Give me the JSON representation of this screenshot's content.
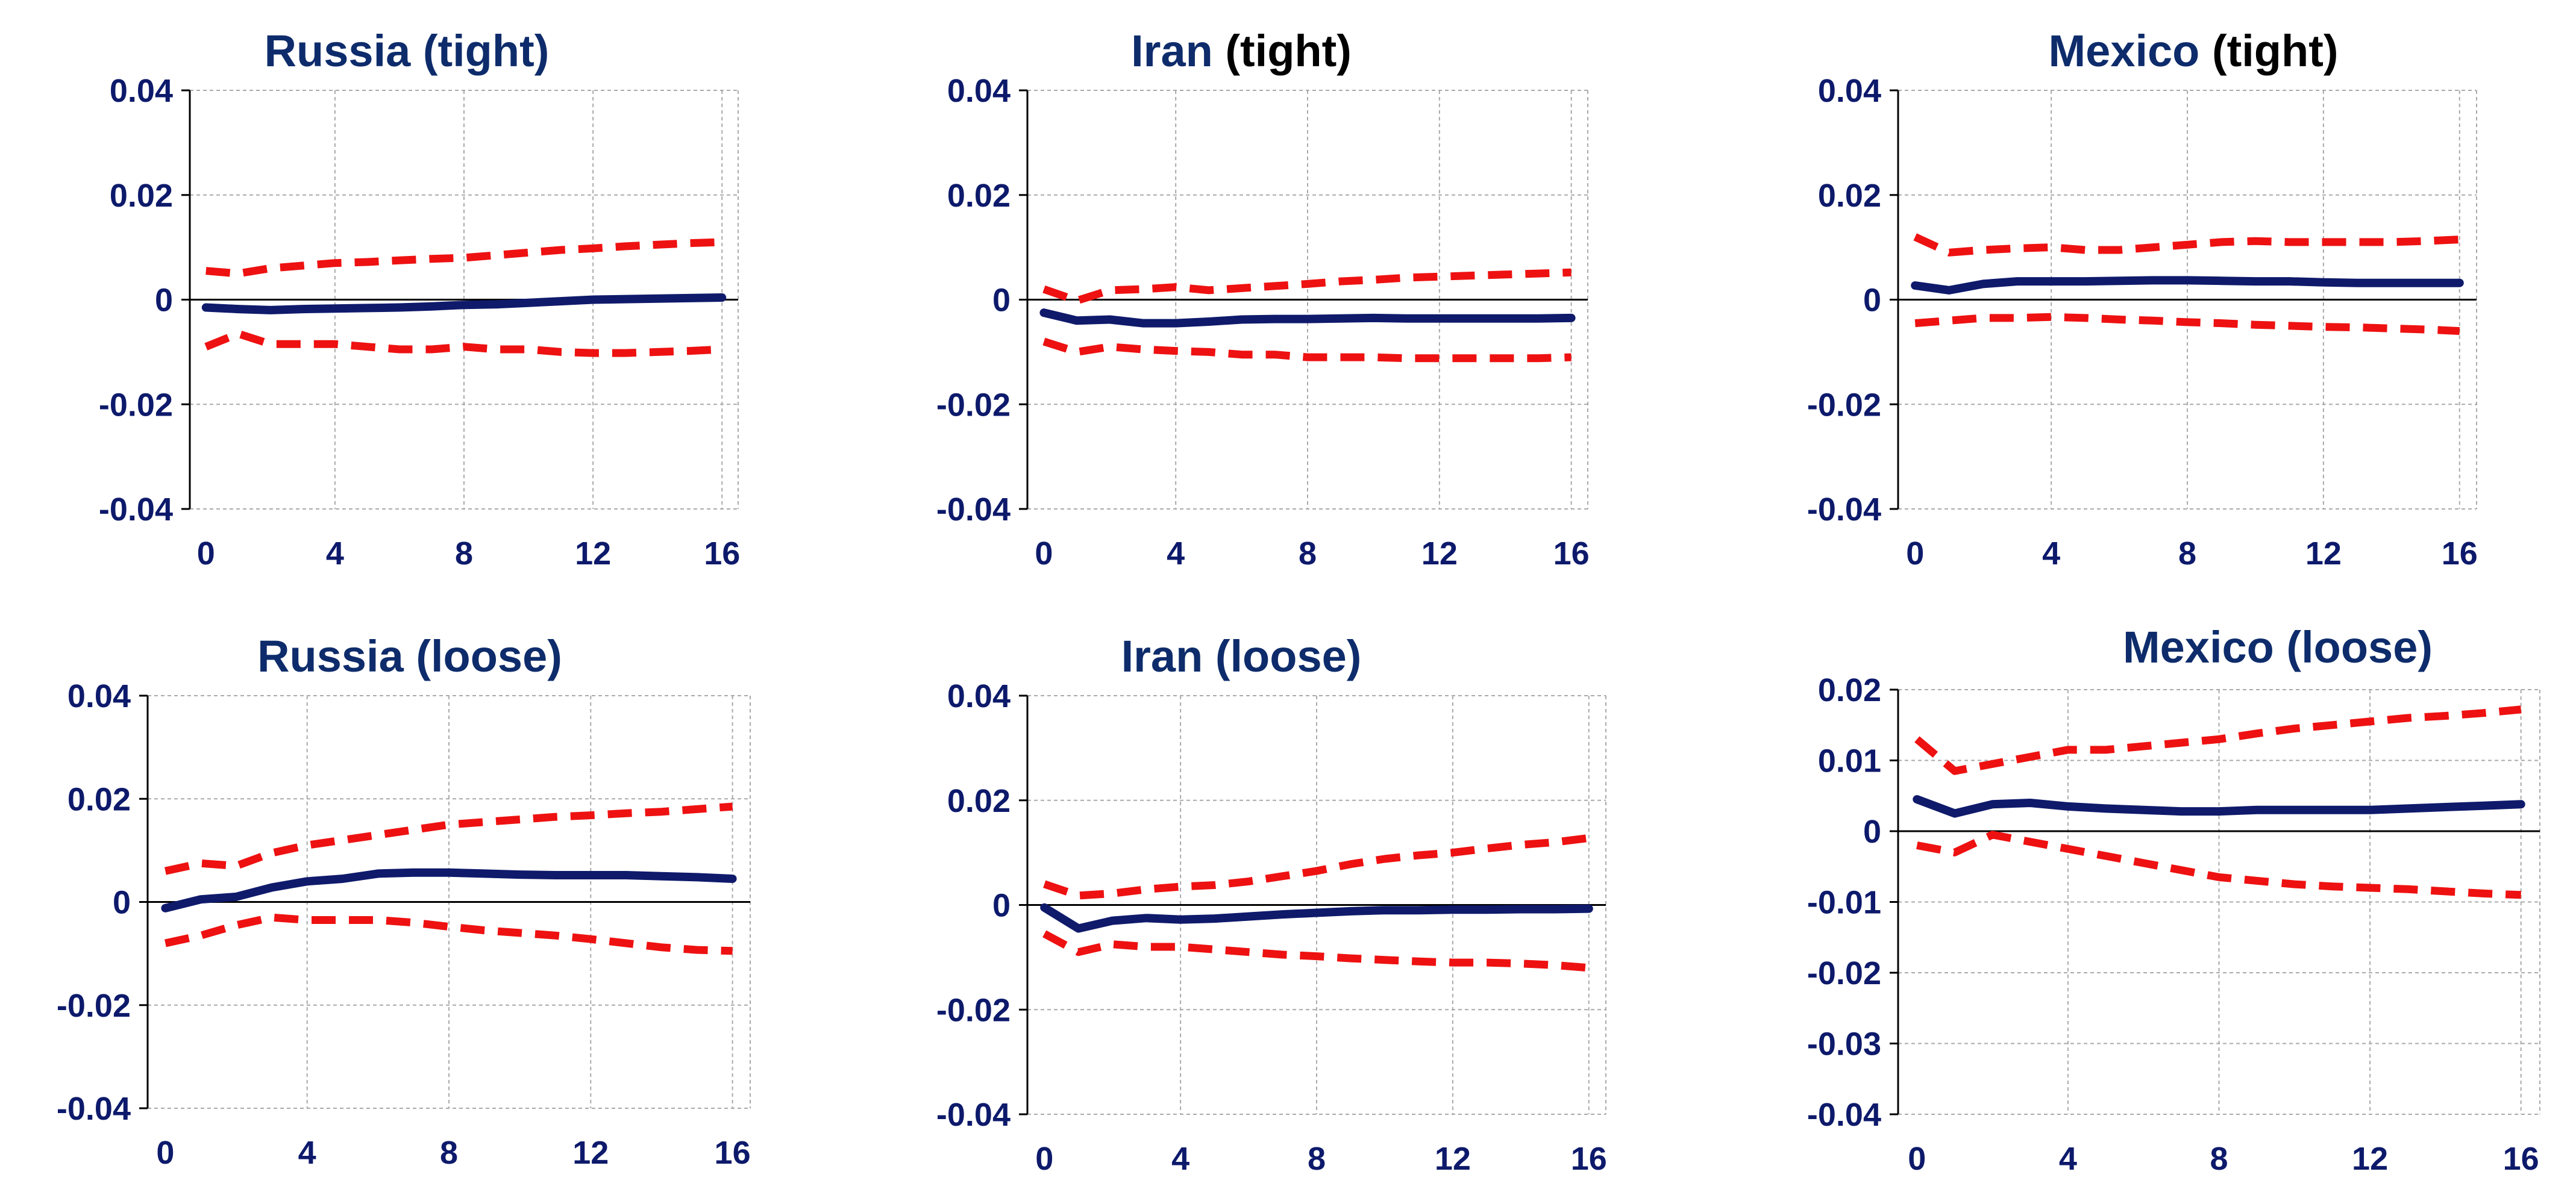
{
  "colors": {
    "axis_text": "#0D1A6B",
    "title": "#0E2C6B",
    "title_suffix_black": "#000000",
    "median_line": "#0F1A6B",
    "band_line": "#EE1111",
    "grid": "#AAAAAA",
    "axis": "#000000"
  },
  "chart_data": [
    {
      "id": "russia-tight",
      "type": "line",
      "title": "Russia (tight)",
      "title_parts": [
        {
          "text": "Russia (tight)",
          "color": "title"
        }
      ],
      "x": [
        0,
        1,
        2,
        3,
        4,
        5,
        6,
        7,
        8,
        9,
        10,
        11,
        12,
        13,
        14,
        15,
        16
      ],
      "xlim": [
        -0.5,
        16.5
      ],
      "xticks": [
        0,
        4,
        8,
        12,
        16
      ],
      "xtick_labels": [
        "0",
        "4",
        "8",
        "12",
        "16"
      ],
      "ylim": [
        -0.04,
        0.04
      ],
      "yticks": [
        -0.04,
        -0.02,
        0,
        0.02,
        0.04
      ],
      "ytick_labels": [
        "-0.04",
        "-0.02",
        "0",
        "0.02",
        "0.04"
      ],
      "grid": true,
      "series": [
        {
          "name": "upper",
          "style": "dashed",
          "values": [
            0.0055,
            0.005,
            0.006,
            0.0065,
            0.007,
            0.0072,
            0.0075,
            0.0078,
            0.008,
            0.0085,
            0.009,
            0.0095,
            0.0098,
            0.0102,
            0.0105,
            0.0108,
            0.011
          ]
        },
        {
          "name": "median",
          "style": "solid",
          "values": [
            -0.0015,
            -0.0018,
            -0.002,
            -0.0018,
            -0.0017,
            -0.0016,
            -0.0015,
            -0.0013,
            -0.001,
            -0.0009,
            -0.0006,
            -0.0003,
            0.0,
            0.0001,
            0.0002,
            0.0003,
            0.0004
          ]
        },
        {
          "name": "lower",
          "style": "dashed",
          "values": [
            -0.009,
            -0.0065,
            -0.0085,
            -0.0085,
            -0.0085,
            -0.009,
            -0.0095,
            -0.0095,
            -0.009,
            -0.0095,
            -0.0095,
            -0.01,
            -0.0102,
            -0.0102,
            -0.01,
            -0.0098,
            -0.0095
          ]
        }
      ]
    },
    {
      "id": "iran-tight",
      "type": "line",
      "title": "Iran (tight)",
      "title_parts": [
        {
          "text": "Iran",
          "color": "title"
        },
        {
          "text": " (tight)",
          "color": "title_suffix_black"
        }
      ],
      "x": [
        0,
        1,
        2,
        3,
        4,
        5,
        6,
        7,
        8,
        9,
        10,
        11,
        12,
        13,
        14,
        15,
        16
      ],
      "xlim": [
        -0.5,
        16.5
      ],
      "xticks": [
        0,
        4,
        8,
        12,
        16
      ],
      "xtick_labels": [
        "0",
        "4",
        "8",
        "12",
        "16"
      ],
      "ylim": [
        -0.04,
        0.04
      ],
      "yticks": [
        -0.04,
        -0.02,
        0,
        0.02,
        0.04
      ],
      "ytick_labels": [
        "-0.04",
        "-0.02",
        "0",
        "0.02",
        "0.04"
      ],
      "grid": true,
      "series": [
        {
          "name": "upper",
          "style": "dashed",
          "values": [
            0.002,
            -0.0002,
            0.0018,
            0.002,
            0.0024,
            0.0018,
            0.0022,
            0.0026,
            0.003,
            0.0035,
            0.0038,
            0.0042,
            0.0044,
            0.0046,
            0.0048,
            0.005,
            0.0052
          ]
        },
        {
          "name": "median",
          "style": "solid",
          "values": [
            -0.0025,
            -0.004,
            -0.0038,
            -0.0045,
            -0.0045,
            -0.0042,
            -0.0038,
            -0.0037,
            -0.0037,
            -0.0036,
            -0.0035,
            -0.0036,
            -0.0036,
            -0.0036,
            -0.0036,
            -0.0036,
            -0.0035
          ]
        },
        {
          "name": "lower",
          "style": "dashed",
          "values": [
            -0.008,
            -0.01,
            -0.009,
            -0.0095,
            -0.0098,
            -0.01,
            -0.0105,
            -0.0105,
            -0.011,
            -0.011,
            -0.011,
            -0.0112,
            -0.0112,
            -0.0112,
            -0.0112,
            -0.0112,
            -0.011
          ]
        }
      ]
    },
    {
      "id": "mexico-tight",
      "type": "line",
      "title": "Mexico (tight)",
      "title_parts": [
        {
          "text": "Mexico",
          "color": "title"
        },
        {
          "text": " (tight)",
          "color": "title_suffix_black"
        }
      ],
      "x": [
        0,
        1,
        2,
        3,
        4,
        5,
        6,
        7,
        8,
        9,
        10,
        11,
        12,
        13,
        14,
        15,
        16
      ],
      "xlim": [
        -0.5,
        16.5
      ],
      "xticks": [
        0,
        4,
        8,
        12,
        16
      ],
      "xtick_labels": [
        "0",
        "4",
        "8",
        "12",
        "16"
      ],
      "ylim": [
        -0.04,
        0.04
      ],
      "yticks": [
        -0.04,
        -0.02,
        0,
        0.02,
        0.04
      ],
      "ytick_labels": [
        "-0.04",
        "-0.02",
        "0",
        "0.02",
        "0.04"
      ],
      "grid": true,
      "series": [
        {
          "name": "upper",
          "style": "dashed",
          "values": [
            0.012,
            0.009,
            0.0095,
            0.0098,
            0.01,
            0.0095,
            0.0095,
            0.01,
            0.0105,
            0.011,
            0.0112,
            0.011,
            0.011,
            0.011,
            0.011,
            0.0112,
            0.0115
          ]
        },
        {
          "name": "median",
          "style": "solid",
          "values": [
            0.0027,
            0.0018,
            0.003,
            0.0035,
            0.0035,
            0.0035,
            0.0036,
            0.0037,
            0.0037,
            0.0036,
            0.0035,
            0.0035,
            0.0033,
            0.0032,
            0.0032,
            0.0032,
            0.0032
          ]
        },
        {
          "name": "lower",
          "style": "dashed",
          "values": [
            -0.0045,
            -0.004,
            -0.0035,
            -0.0035,
            -0.0033,
            -0.0035,
            -0.0038,
            -0.004,
            -0.0043,
            -0.0045,
            -0.0048,
            -0.005,
            -0.0052,
            -0.0053,
            -0.0055,
            -0.0057,
            -0.006
          ]
        }
      ]
    },
    {
      "id": "russia-loose",
      "type": "line",
      "title": "Russia (loose)",
      "title_parts": [
        {
          "text": "Russia (loose)",
          "color": "title"
        }
      ],
      "x": [
        0,
        1,
        2,
        3,
        4,
        5,
        6,
        7,
        8,
        9,
        10,
        11,
        12,
        13,
        14,
        15,
        16
      ],
      "xlim": [
        -0.5,
        16.5
      ],
      "xticks": [
        0,
        4,
        8,
        12,
        16
      ],
      "xtick_labels": [
        "0",
        "4",
        "8",
        "12",
        "16"
      ],
      "ylim": [
        -0.04,
        0.04
      ],
      "yticks": [
        -0.04,
        -0.02,
        0,
        0.02,
        0.04
      ],
      "ytick_labels": [
        "-0.04",
        "-0.02",
        "0",
        "0.02",
        "0.04"
      ],
      "grid": true,
      "series": [
        {
          "name": "upper",
          "style": "dashed",
          "values": [
            0.006,
            0.0075,
            0.007,
            0.0095,
            0.011,
            0.012,
            0.013,
            0.014,
            0.015,
            0.0155,
            0.016,
            0.0165,
            0.0168,
            0.0172,
            0.0175,
            0.018,
            0.0185
          ]
        },
        {
          "name": "median",
          "style": "solid",
          "values": [
            -0.0012,
            0.0005,
            0.001,
            0.0028,
            0.004,
            0.0045,
            0.0055,
            0.0057,
            0.0057,
            0.0055,
            0.0053,
            0.0052,
            0.0052,
            0.0052,
            0.005,
            0.0048,
            0.0045
          ]
        },
        {
          "name": "lower",
          "style": "dashed",
          "values": [
            -0.008,
            -0.0065,
            -0.0045,
            -0.003,
            -0.0035,
            -0.0035,
            -0.0035,
            -0.004,
            -0.0048,
            -0.0055,
            -0.006,
            -0.0065,
            -0.0072,
            -0.008,
            -0.0088,
            -0.0093,
            -0.0095
          ]
        }
      ]
    },
    {
      "id": "iran-loose",
      "type": "line",
      "title": "Iran (loose)",
      "title_parts": [
        {
          "text": "Iran (loose)",
          "color": "title"
        }
      ],
      "x": [
        0,
        1,
        2,
        3,
        4,
        5,
        6,
        7,
        8,
        9,
        10,
        11,
        12,
        13,
        14,
        15,
        16
      ],
      "xlim": [
        -0.5,
        16.5
      ],
      "xticks": [
        0,
        4,
        8,
        12,
        16
      ],
      "xtick_labels": [
        "0",
        "4",
        "8",
        "12",
        "16"
      ],
      "ylim": [
        -0.04,
        0.04
      ],
      "yticks": [
        -0.04,
        -0.02,
        0,
        0.02,
        0.04
      ],
      "ytick_labels": [
        "-0.04",
        "-0.02",
        "0",
        "0.02",
        "0.04"
      ],
      "grid": true,
      "series": [
        {
          "name": "upper",
          "style": "dashed",
          "values": [
            0.004,
            0.0018,
            0.0022,
            0.003,
            0.0035,
            0.0038,
            0.0045,
            0.0055,
            0.0065,
            0.0078,
            0.0088,
            0.0095,
            0.01,
            0.0108,
            0.0115,
            0.012,
            0.0128
          ]
        },
        {
          "name": "median",
          "style": "solid",
          "values": [
            -0.0005,
            -0.0045,
            -0.003,
            -0.0025,
            -0.0028,
            -0.0026,
            -0.0022,
            -0.0018,
            -0.0015,
            -0.0012,
            -0.001,
            -0.001,
            -0.0009,
            -0.0009,
            -0.0008,
            -0.0008,
            -0.0007
          ]
        },
        {
          "name": "lower",
          "style": "dashed",
          "values": [
            -0.0055,
            -0.009,
            -0.0075,
            -0.008,
            -0.008,
            -0.0085,
            -0.009,
            -0.0095,
            -0.0098,
            -0.0102,
            -0.0105,
            -0.0108,
            -0.011,
            -0.011,
            -0.0112,
            -0.0115,
            -0.012
          ]
        }
      ]
    },
    {
      "id": "mexico-loose",
      "type": "line",
      "title": "Mexico (loose)",
      "title_parts": [
        {
          "text": "Mexico (loose)",
          "color": "title"
        }
      ],
      "x": [
        0,
        1,
        2,
        3,
        4,
        5,
        6,
        7,
        8,
        9,
        10,
        11,
        12,
        13,
        14,
        15,
        16
      ],
      "xlim": [
        -0.5,
        16.5
      ],
      "xticks": [
        0,
        4,
        8,
        12,
        16
      ],
      "xtick_labels": [
        "0",
        "4",
        "8",
        "12",
        "16"
      ],
      "ylim": [
        -0.04,
        0.02
      ],
      "yticks": [
        -0.04,
        -0.03,
        -0.02,
        -0.01,
        0,
        0.01,
        0.02
      ],
      "ytick_labels": [
        "-0.04",
        "-0.03",
        "-0.02",
        "-0.01",
        "0",
        "0.01",
        "0.02"
      ],
      "grid": true,
      "series": [
        {
          "name": "upper",
          "style": "dashed",
          "values": [
            0.013,
            0.0085,
            0.0095,
            0.0105,
            0.0115,
            0.0115,
            0.012,
            0.0125,
            0.013,
            0.0138,
            0.0145,
            0.015,
            0.0155,
            0.016,
            0.0163,
            0.0167,
            0.0172
          ]
        },
        {
          "name": "median",
          "style": "solid",
          "values": [
            0.0045,
            0.0025,
            0.0038,
            0.004,
            0.0035,
            0.0032,
            0.003,
            0.0028,
            0.0028,
            0.003,
            0.003,
            0.003,
            0.003,
            0.0032,
            0.0034,
            0.0036,
            0.0038
          ]
        },
        {
          "name": "lower",
          "style": "dashed",
          "values": [
            -0.002,
            -0.003,
            -0.0005,
            -0.0015,
            -0.0025,
            -0.0035,
            -0.0045,
            -0.0055,
            -0.0065,
            -0.007,
            -0.0075,
            -0.0078,
            -0.008,
            -0.0082,
            -0.0085,
            -0.0088,
            -0.009
          ]
        }
      ]
    }
  ]
}
